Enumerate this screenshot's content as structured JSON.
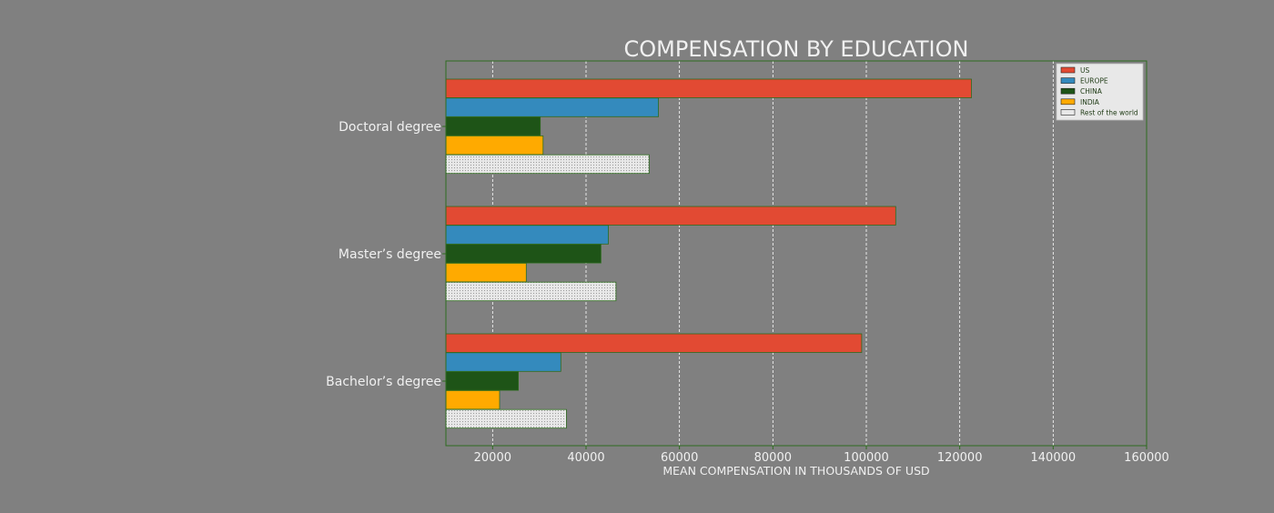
{
  "chart_data": {
    "type": "bar",
    "orientation": "horizontal",
    "title": "COMPENSATION BY EDUCATION",
    "xlabel": "MEAN COMPENSATION IN THOUSANDS OF USD",
    "ylabel": "",
    "xlim": [
      10000,
      160000
    ],
    "xticks": [
      20000,
      40000,
      60000,
      80000,
      100000,
      120000,
      140000,
      160000
    ],
    "xtick_labels": [
      "20000",
      "40000",
      "60000",
      "80000",
      "100000",
      "120000",
      "140000",
      "160000"
    ],
    "grid": "vertical dashed",
    "legend_position": "top-right",
    "categories": [
      "Doctoral degree",
      "Master’s degree",
      "Bachelor’s degree"
    ],
    "series": [
      {
        "name": "US",
        "color": "#E24A33",
        "values": [
          122500,
          106300,
          99000
        ]
      },
      {
        "name": "EUROPE",
        "color": "#348ABD",
        "values": [
          55500,
          44800,
          34600
        ]
      },
      {
        "name": "CHINA",
        "color": "#1E5417",
        "values": [
          30200,
          43200,
          25500
        ]
      },
      {
        "name": "INDIA",
        "color": "#FFAA00",
        "values": [
          30800,
          27200,
          21500
        ]
      },
      {
        "name": "Rest of the world",
        "color": "#E6E6E6",
        "values": [
          53500,
          46400,
          35800
        ]
      }
    ],
    "colors": {
      "background": "#808080",
      "axes_edge": "#2E6B1F",
      "text": "#F0F0F0",
      "grid": "#FFFFFF"
    }
  }
}
